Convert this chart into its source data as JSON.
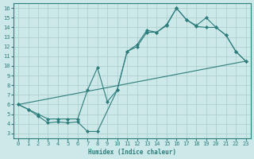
{
  "xlabel": "Humidex (Indice chaleur)",
  "background_color": "#cce8e8",
  "grid_color": "#aacccc",
  "line_color": "#2e7d7d",
  "xlim": [
    -0.5,
    23.5
  ],
  "ylim": [
    2.5,
    16.5
  ],
  "xticks": [
    0,
    1,
    2,
    3,
    4,
    5,
    6,
    7,
    8,
    9,
    10,
    11,
    12,
    13,
    14,
    15,
    16,
    17,
    18,
    19,
    20,
    21,
    22,
    23
  ],
  "yticks": [
    3,
    4,
    5,
    6,
    7,
    8,
    9,
    10,
    11,
    12,
    13,
    14,
    15,
    16
  ],
  "line1_x": [
    0,
    1,
    2,
    3,
    4,
    5,
    6,
    7,
    8,
    10,
    11,
    12,
    13,
    14,
    15,
    16,
    17,
    18,
    19,
    20,
    21,
    22,
    23
  ],
  "line1_y": [
    6.0,
    5.5,
    4.8,
    4.1,
    4.2,
    4.1,
    4.2,
    3.2,
    3.2,
    7.5,
    11.5,
    12.2,
    13.7,
    13.5,
    14.3,
    16.0,
    14.8,
    14.1,
    14.0,
    14.0,
    13.2,
    11.5,
    10.5
  ],
  "line2_x": [
    0,
    1,
    2,
    3,
    4,
    5,
    6,
    7,
    8,
    9,
    10,
    11,
    12,
    13,
    14,
    15,
    16,
    17,
    18,
    19,
    20,
    21,
    22,
    23
  ],
  "line2_y": [
    6.0,
    5.5,
    5.0,
    4.5,
    4.5,
    4.5,
    4.5,
    7.5,
    9.8,
    6.3,
    7.5,
    11.5,
    12.0,
    13.5,
    13.5,
    14.2,
    16.0,
    14.8,
    14.2,
    15.0,
    14.0,
    13.2,
    11.5,
    10.5
  ],
  "line3_x": [
    0,
    23
  ],
  "line3_y": [
    6.0,
    10.5
  ],
  "font_family": "monospace"
}
